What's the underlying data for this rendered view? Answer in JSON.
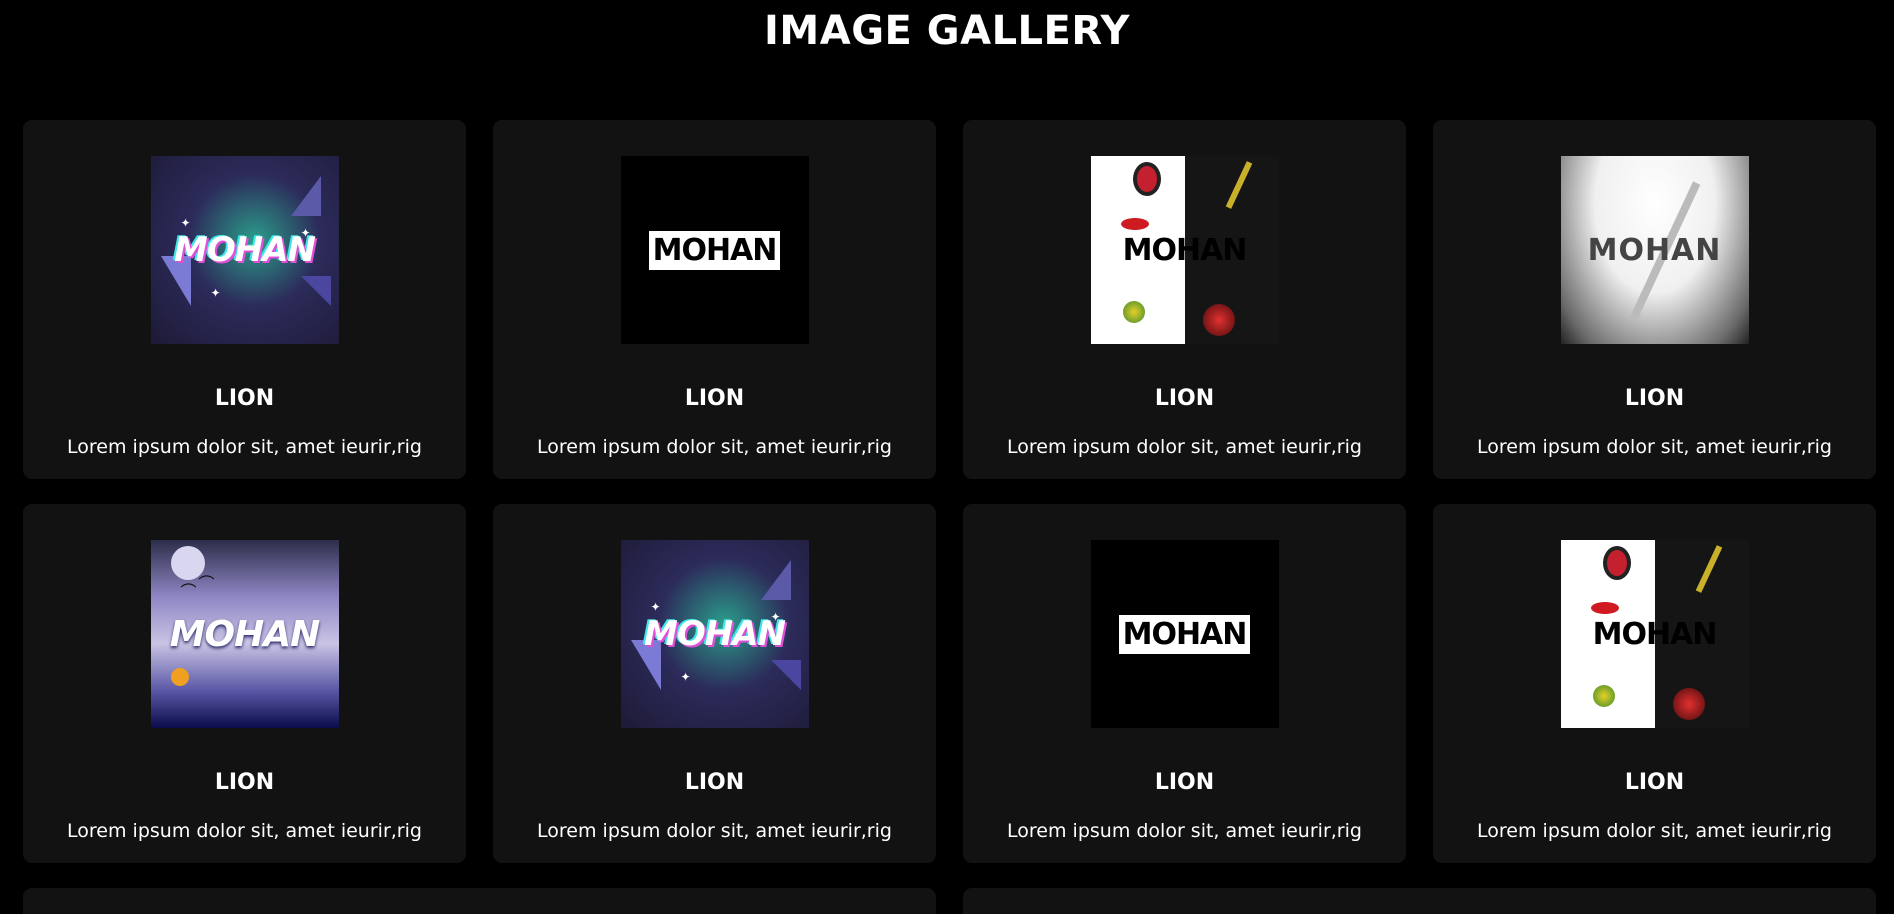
{
  "header": {
    "title": "IMAGE GALLERY"
  },
  "cards": [
    {
      "style": "neon",
      "logo": "MOHAN",
      "title": "LION",
      "description": "Lorem ipsum dolor sit, amet ieurir,rig"
    },
    {
      "style": "black",
      "logo": "MOHAN",
      "title": "LION",
      "description": "Lorem ipsum dolor sit, amet ieurir,rig"
    },
    {
      "style": "split",
      "logo": "MOHAN",
      "title": "LION",
      "description": "Lorem ipsum dolor sit, amet ieurir,rig"
    },
    {
      "style": "white",
      "logo": "MOHAN",
      "title": "LION",
      "description": "Lorem ipsum dolor sit, amet ieurir,rig"
    },
    {
      "style": "night",
      "logo": "MOHAN",
      "title": "LION",
      "description": "Lorem ipsum dolor sit, amet ieurir,rig"
    },
    {
      "style": "neon",
      "logo": "MOHAN",
      "title": "LION",
      "description": "Lorem ipsum dolor sit, amet ieurir,rig"
    },
    {
      "style": "black",
      "logo": "MOHAN",
      "title": "LION",
      "description": "Lorem ipsum dolor sit, amet ieurir,rig"
    },
    {
      "style": "split",
      "logo": "MOHAN",
      "title": "LION",
      "description": "Lorem ipsum dolor sit, amet ieurir,rig"
    }
  ],
  "colors": {
    "background": "#000000",
    "card": "#121212",
    "text": "#ffffff",
    "accent_green": "#2de38f",
    "accent_pink": "#e04fd8"
  }
}
